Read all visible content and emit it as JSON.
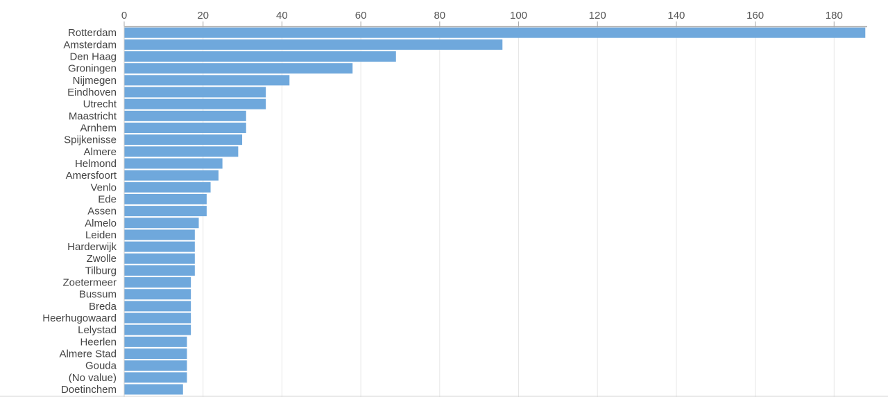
{
  "chart_data": {
    "type": "bar",
    "orientation": "horizontal",
    "title": "",
    "xlabel": "",
    "ylabel": "",
    "xlim": [
      0,
      188
    ],
    "x_ticks": [
      0,
      20,
      40,
      60,
      80,
      100,
      120,
      140,
      160,
      180
    ],
    "axis_position": "top",
    "grid": true,
    "bar_color": "#6fa8dc",
    "categories": [
      "Rotterdam",
      "Amsterdam",
      "Den Haag",
      "Groningen",
      "Nijmegen",
      "Eindhoven",
      "Utrecht",
      "Maastricht",
      "Arnhem",
      "Spijkenisse",
      "Almere",
      "Helmond",
      "Amersfoort",
      "Venlo",
      "Ede",
      "Assen",
      "Almelo",
      "Leiden",
      "Harderwijk",
      "Zwolle",
      "Tilburg",
      "Zoetermeer",
      "Bussum",
      "Breda",
      "Heerhugowaard",
      "Lelystad",
      "Heerlen",
      "Almere Stad",
      "Gouda",
      "(No value)",
      "Doetinchem"
    ],
    "values": [
      188,
      96,
      69,
      58,
      42,
      36,
      36,
      31,
      31,
      30,
      29,
      25,
      24,
      22,
      21,
      21,
      19,
      18,
      18,
      18,
      18,
      17,
      17,
      17,
      17,
      17,
      16,
      16,
      16,
      16,
      15
    ]
  }
}
